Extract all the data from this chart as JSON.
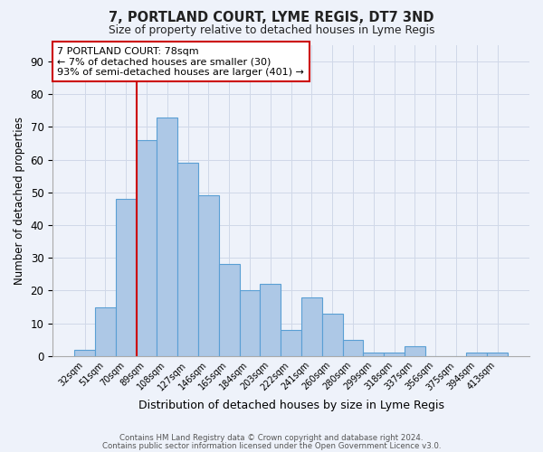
{
  "title1": "7, PORTLAND COURT, LYME REGIS, DT7 3ND",
  "title2": "Size of property relative to detached houses in Lyme Regis",
  "xlabel": "Distribution of detached houses by size in Lyme Regis",
  "ylabel": "Number of detached properties",
  "bin_labels": [
    "32sqm",
    "51sqm",
    "70sqm",
    "89sqm",
    "108sqm",
    "127sqm",
    "146sqm",
    "165sqm",
    "184sqm",
    "203sqm",
    "222sqm",
    "241sqm",
    "260sqm",
    "280sqm",
    "299sqm",
    "318sqm",
    "337sqm",
    "356sqm",
    "375sqm",
    "394sqm",
    "413sqm"
  ],
  "bar_heights": [
    2,
    15,
    48,
    66,
    73,
    59,
    49,
    28,
    20,
    22,
    8,
    18,
    13,
    5,
    1,
    1,
    3,
    0,
    0,
    1,
    1
  ],
  "bar_color": "#adc8e6",
  "bar_edge_color": "#5a9fd4",
  "vline_color": "#cc0000",
  "annotation_text": "7 PORTLAND COURT: 78sqm\n← 7% of detached houses are smaller (30)\n93% of semi-detached houses are larger (401) →",
  "annotation_box_color": "#ffffff",
  "annotation_box_edge": "#cc0000",
  "ylim": [
    0,
    95
  ],
  "yticks": [
    0,
    10,
    20,
    30,
    40,
    50,
    60,
    70,
    80,
    90
  ],
  "grid_color": "#d0d8e8",
  "background_color": "#eef2fa",
  "footer1": "Contains HM Land Registry data © Crown copyright and database right 2024.",
  "footer2": "Contains public sector information licensed under the Open Government Licence v3.0."
}
